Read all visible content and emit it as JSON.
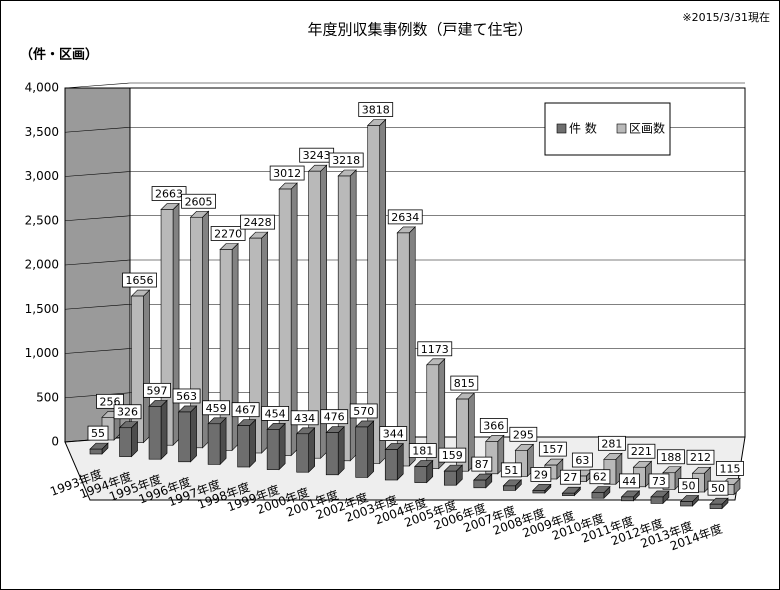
{
  "chart_data": {
    "type": "bar3d",
    "title": "年度別収集事例数（戸建て住宅）",
    "note": "※2015/3/31現在",
    "y_axis_label": "（件・区画）",
    "categories": [
      "1993年度",
      "1994年度",
      "1995年度",
      "1996年度",
      "1997年度",
      "1998年度",
      "1999年度",
      "2000年度",
      "2001年度",
      "2002年度",
      "2003年度",
      "2004年度",
      "2005年度",
      "2006年度",
      "2007年度",
      "2008年度",
      "2009年度",
      "2010年度",
      "2011年度",
      "2012年度",
      "2013年度",
      "2014年度"
    ],
    "series": [
      {
        "name": "件 数",
        "color": "#6e6e6e",
        "values": [
          55,
          326,
          597,
          563,
          459,
          467,
          454,
          434,
          476,
          570,
          344,
          181,
          159,
          87,
          51,
          29,
          27,
          62,
          44,
          73,
          50,
          50
        ]
      },
      {
        "name": "区画数",
        "color": "#b9b9b9",
        "values": [
          256,
          1656,
          2663,
          2605,
          2270,
          2428,
          3012,
          3243,
          3218,
          3818,
          2634,
          1173,
          815,
          366,
          295,
          157,
          63,
          281,
          221,
          188,
          212,
          115
        ]
      }
    ],
    "ylim": [
      0,
      4000
    ],
    "yticks": [
      0,
      500,
      {
        "value": 1000,
        "label": "1,000"
      },
      {
        "value": 1500,
        "label": "1,500"
      },
      {
        "value": 2000,
        "label": "2,000"
      },
      {
        "value": 2500,
        "label": "2,500"
      },
      {
        "value": 3000,
        "label": "3,000"
      },
      {
        "value": 3500,
        "label": "3,500"
      },
      {
        "value": 4000,
        "label": "4,000"
      }
    ],
    "grid": true,
    "legend": "upper right"
  }
}
